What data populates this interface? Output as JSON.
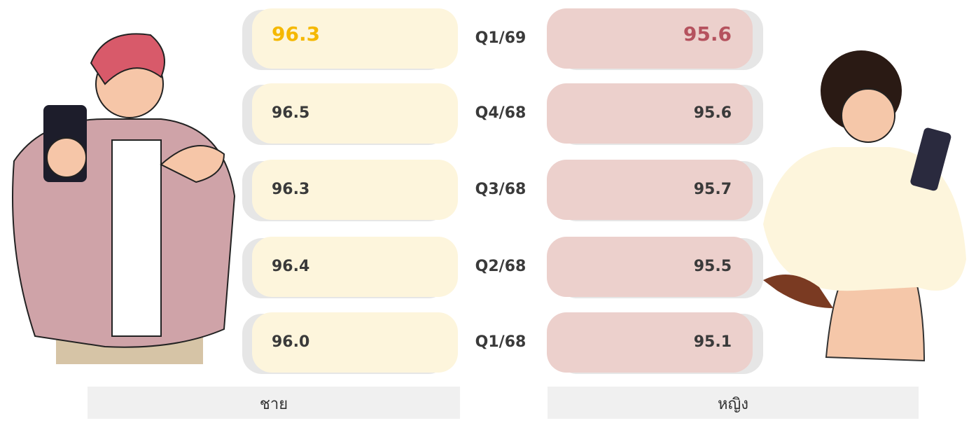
{
  "quarters": [
    "Q1/69",
    "Q4/68",
    "Q3/68",
    "Q2/68",
    "Q1/68"
  ],
  "male": {
    "label": "ชาย",
    "values": [
      "96.3",
      "96.5",
      "96.3",
      "96.4",
      "96.0"
    ]
  },
  "female": {
    "label": "หญิง",
    "values": [
      "95.6",
      "95.6",
      "95.7",
      "95.5",
      "95.1"
    ]
  }
}
